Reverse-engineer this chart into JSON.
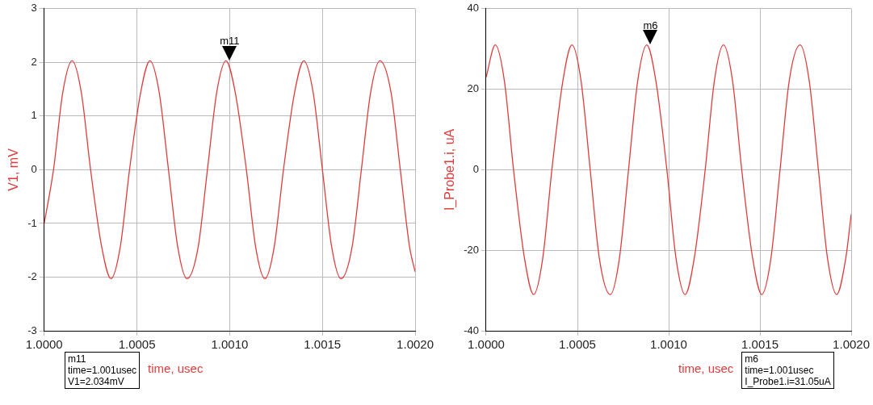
{
  "chart_data": [
    {
      "type": "line",
      "ylabel": "V1, mV",
      "xlabel": "time, usec",
      "grid": true,
      "legend": false,
      "marker": "none",
      "line_style": "solid",
      "xlim": [
        1.0,
        1.002
      ],
      "xticks": [
        {
          "value": 1.0,
          "label": "1.0000"
        },
        {
          "value": 1.0005,
          "label": "1.0005"
        },
        {
          "value": 1.001,
          "label": "1.0010"
        },
        {
          "value": 1.0015,
          "label": "1.0015"
        },
        {
          "value": 1.002,
          "label": "1.0020"
        }
      ],
      "ylim": [
        -3,
        3
      ],
      "yticks": [
        -3,
        -2,
        -1,
        0,
        1,
        2,
        3
      ],
      "series": [
        {
          "color": "#e03c3c",
          "x": [
            1.0,
            1.00005,
            1.0001,
            1.00015,
            1.0002,
            1.00025,
            1.00031,
            1.00036,
            1.00041,
            1.00046,
            1.00052,
            1.00057,
            1.00062,
            1.00067,
            1.00072,
            1.00077,
            1.00083,
            1.00088,
            1.00093,
            1.00098,
            1.00103,
            1.00109,
            1.00114,
            1.00119,
            1.00124,
            1.00129,
            1.00135,
            1.0014,
            1.00145,
            1.0015,
            1.00155,
            1.0016,
            1.00166,
            1.00171,
            1.00176,
            1.00181,
            1.00187,
            1.00192,
            1.00197,
            1.002
          ],
          "values": [
            -1.0,
            0,
            1.44,
            2.03,
            1.44,
            0,
            -1.44,
            -2.03,
            -1.44,
            0,
            1.44,
            2.03,
            1.44,
            0,
            -1.44,
            -2.03,
            -1.44,
            0,
            1.44,
            2.03,
            1.44,
            0,
            -1.44,
            -2.03,
            -1.44,
            0,
            1.44,
            2.03,
            1.44,
            0,
            -1.44,
            -2.03,
            -1.44,
            0,
            1.44,
            2.03,
            1.44,
            0,
            -1.44,
            -1.9
          ]
        }
      ],
      "annotations": [
        {
          "text": "m11",
          "x": 1.001,
          "y": 2.034
        },
        "m11\ntime=1.001usec\nV1=2.034mV"
      ]
    },
    {
      "type": "line",
      "ylabel": "I_Probe1.i, uA",
      "xlabel": "time, usec",
      "grid": true,
      "legend": false,
      "marker": "none",
      "line_style": "solid",
      "xlim": [
        1.0,
        1.002
      ],
      "xticks": [
        {
          "value": 1.0,
          "label": "1.0000"
        },
        {
          "value": 1.0005,
          "label": "1.0005"
        },
        {
          "value": 1.001,
          "label": "1.0010"
        },
        {
          "value": 1.0015,
          "label": "1.0015"
        },
        {
          "value": 1.002,
          "label": "1.0020"
        }
      ],
      "ylim": [
        -40,
        40
      ],
      "yticks": [
        -40,
        -20,
        0,
        20,
        40
      ],
      "series": [
        {
          "color": "#e03c3c",
          "x": [
            1.0,
            1.00005,
            1.0001,
            1.00015,
            1.00021,
            1.00026,
            1.00031,
            1.00036,
            1.00042,
            1.00047,
            1.00052,
            1.00057,
            1.00062,
            1.00068,
            1.00073,
            1.00078,
            1.00083,
            1.00088,
            1.00093,
            1.00099,
            1.00104,
            1.00109,
            1.00114,
            1.0012,
            1.00125,
            1.0013,
            1.00135,
            1.0014,
            1.00146,
            1.00151,
            1.00156,
            1.00161,
            1.00166,
            1.00172,
            1.00177,
            1.00182,
            1.00187,
            1.00192,
            1.00197,
            1.002
          ],
          "values": [
            23,
            31,
            22,
            0,
            -22,
            -31,
            -22,
            0,
            22,
            31,
            22,
            0,
            -22,
            -31,
            -22,
            0,
            22,
            31,
            22,
            0,
            -22,
            -31,
            -22,
            0,
            22,
            31,
            22,
            0,
            -22,
            -31,
            -22,
            0,
            22,
            31,
            22,
            0,
            -22,
            -31,
            -22,
            -11
          ]
        }
      ],
      "annotations": [
        {
          "text": "m6",
          "x": 1.0009,
          "y": 31.05
        },
        "m6\ntime=1.001usec\nI_Probe1.i=31.05uA"
      ]
    }
  ]
}
